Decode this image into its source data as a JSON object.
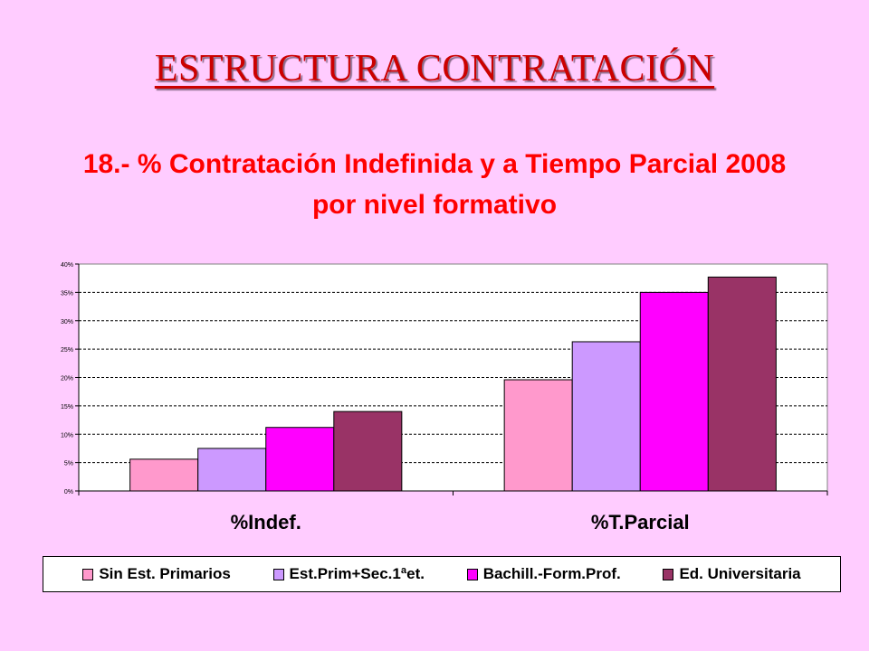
{
  "slide_title": "ESTRUCTURA CONTRATACIÓN",
  "chart_data": {
    "type": "bar",
    "title_line1": "18.- % Contratación Indefinida y a Tiempo Parcial 2008",
    "title_line2": "por nivel formativo",
    "categories": [
      "%Indef.",
      "%T.Parcial"
    ],
    "series": [
      {
        "name": "Sin Est. Primarios",
        "color": "#ff99cc",
        "values": [
          5.6,
          19.6
        ]
      },
      {
        "name": "Est.Prim+Sec.1ªet.",
        "color": "#cc99ff",
        "values": [
          7.5,
          26.3
        ]
      },
      {
        "name": "Bachill.-Form.Prof.",
        "color": "#ff00ff",
        "values": [
          11.2,
          35.0
        ]
      },
      {
        "name": "Ed. Universitaria",
        "color": "#993366",
        "values": [
          14.0,
          37.7
        ]
      }
    ],
    "ylim": [
      0,
      40
    ],
    "yticks": [
      "0%",
      "5%",
      "10%",
      "15%",
      "20%",
      "25%",
      "30%",
      "35%",
      "40%"
    ],
    "grid": true,
    "legend_position": "bottom"
  }
}
